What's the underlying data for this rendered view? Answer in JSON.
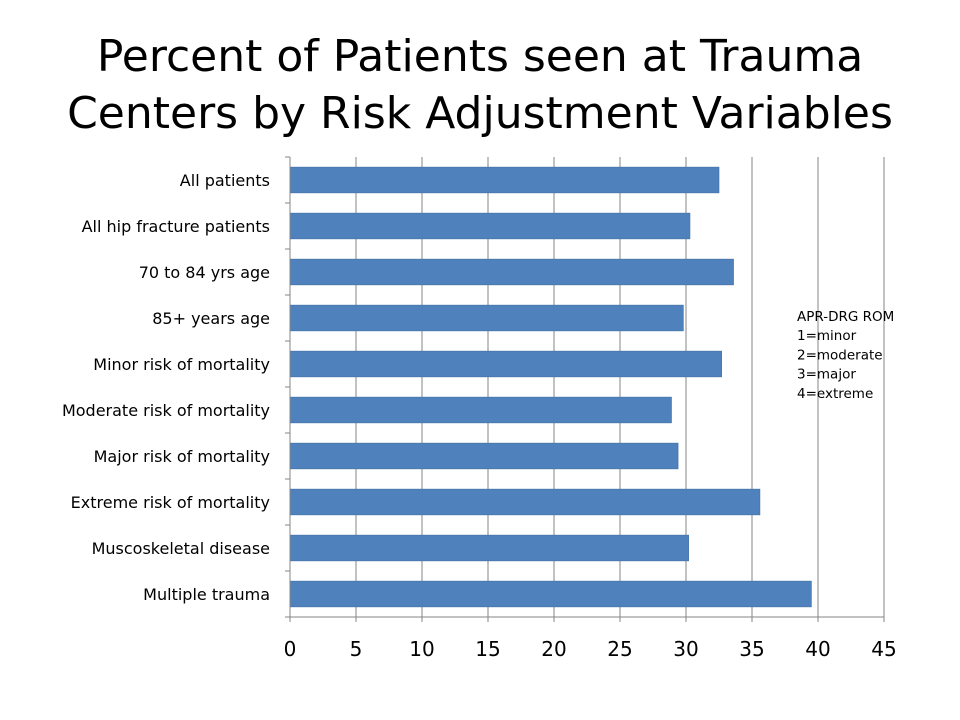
{
  "slide": {
    "title_line1": "Percent of Patients seen at Trauma",
    "title_line2": "Centers by Risk Adjustment Variables"
  },
  "chart_data": {
    "type": "bar",
    "orientation": "horizontal",
    "title": "",
    "xlabel": "",
    "ylabel": "",
    "xlim": [
      0,
      45
    ],
    "x_ticks": [
      0,
      5,
      10,
      15,
      20,
      25,
      30,
      35,
      40,
      45
    ],
    "grid": "vertical major gridlines at x ticks",
    "legend": "none",
    "bar_color": "#4f81bd",
    "grid_color": "#868686",
    "categories": [
      "All patients",
      "All hip fracture patients",
      "70 to 84 yrs age",
      "85+ years age",
      "Minor risk of mortality",
      "Moderate risk of mortality",
      "Major risk of mortality",
      "Extreme risk of mortality",
      "Muscoskeletal disease",
      "Multiple trauma"
    ],
    "values": [
      32.5,
      30.3,
      33.6,
      29.8,
      32.7,
      28.9,
      29.4,
      35.6,
      30.2,
      39.5
    ],
    "annotation": {
      "lines": [
        "APR-DRG ROM",
        "1=minor",
        "2=moderate",
        "3=major",
        "4=extreme"
      ]
    }
  }
}
